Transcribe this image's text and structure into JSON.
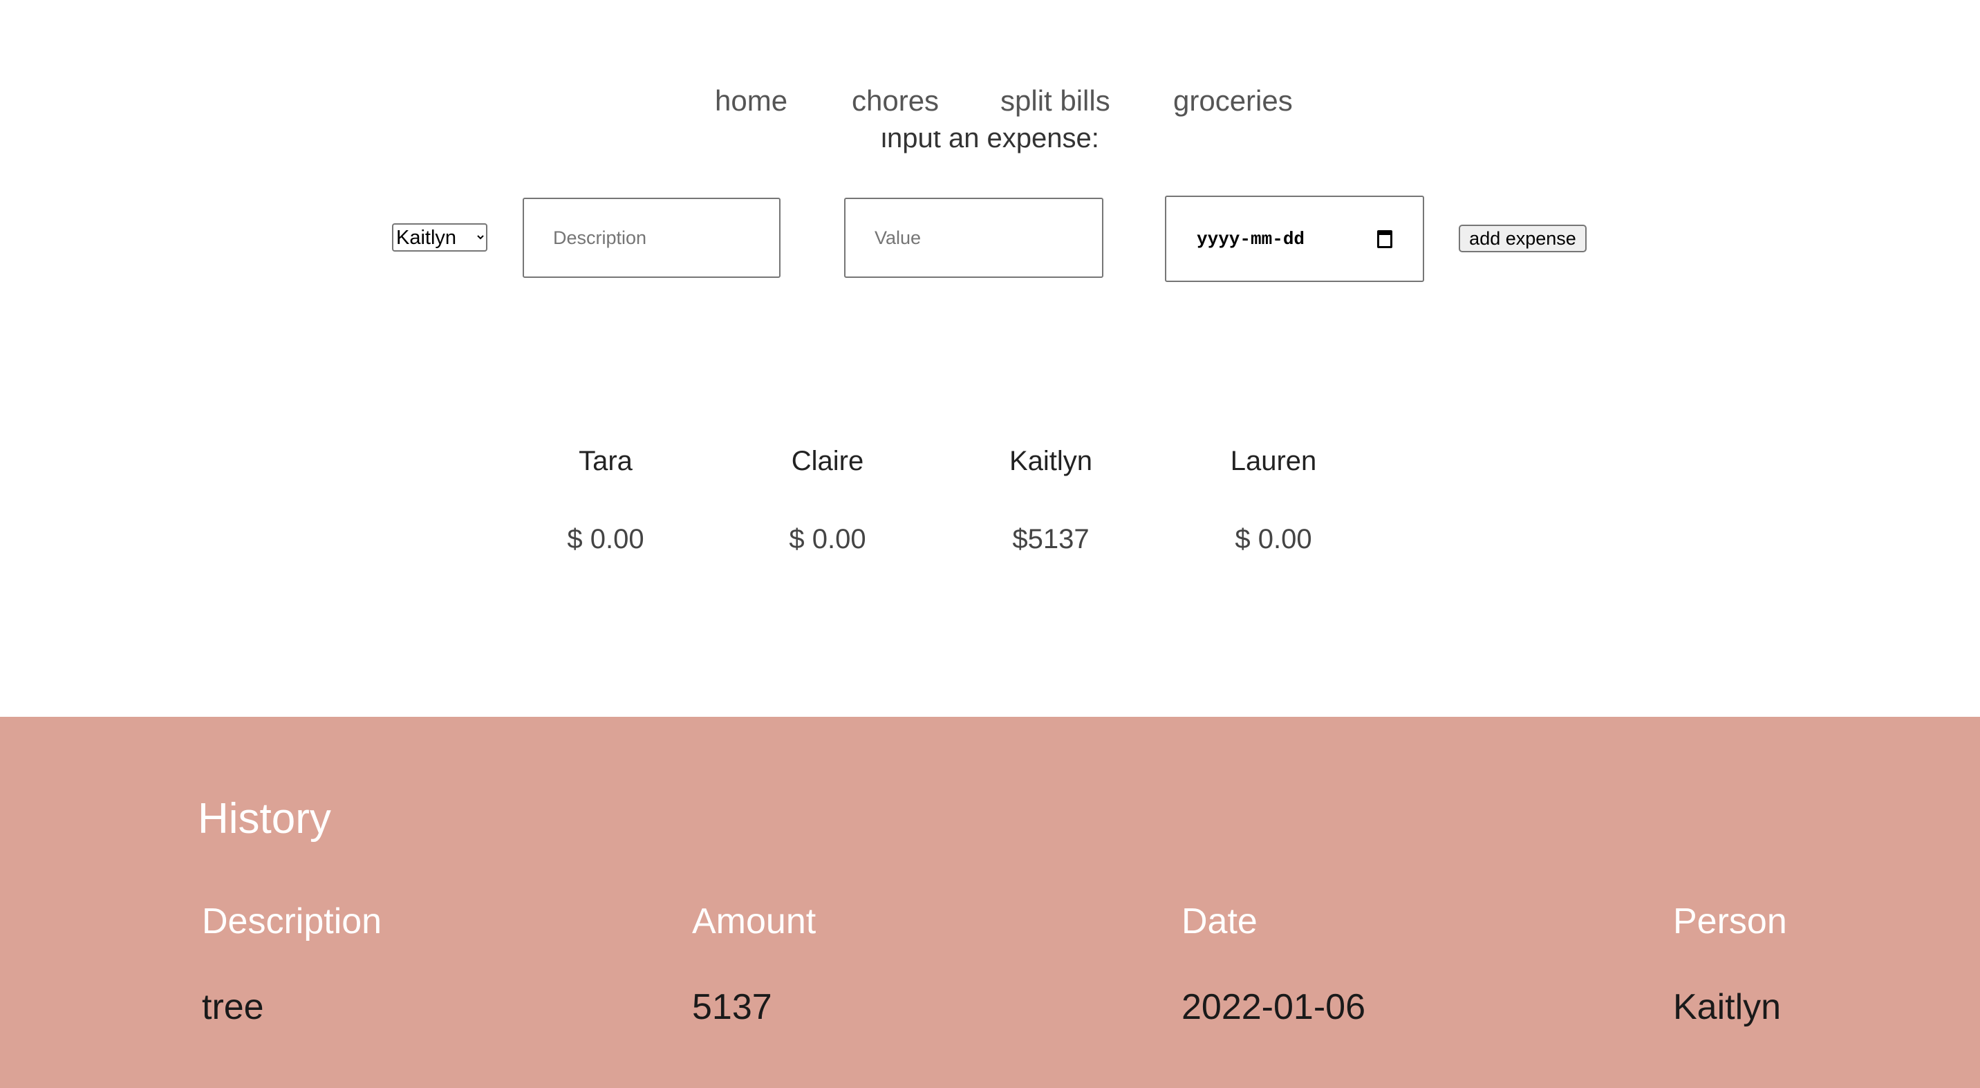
{
  "nav": {
    "items": [
      {
        "label": "home"
      },
      {
        "label": "chores"
      },
      {
        "label": "split bills"
      },
      {
        "label": "groceries"
      }
    ]
  },
  "form": {
    "prompt": "input an expense:",
    "person_select": {
      "value": "Kaitlyn",
      "options": [
        "Kaitlyn"
      ]
    },
    "description": {
      "placeholder": "Description",
      "value": ""
    },
    "value": {
      "placeholder": "Value",
      "value": ""
    },
    "date": {
      "placeholder": "yyyy-mm-dd",
      "icon": "calendar-icon"
    },
    "submit_label": "add expense"
  },
  "balances": [
    {
      "name": "Tara",
      "amount": "$ 0.00"
    },
    {
      "name": "Claire",
      "amount": "$ 0.00"
    },
    {
      "name": "Kaitlyn",
      "amount": "$5137"
    },
    {
      "name": "Lauren",
      "amount": "$ 0.00"
    }
  ],
  "history": {
    "title": "History",
    "background": "#dba396",
    "columns": [
      "Description",
      "Amount",
      "Date",
      "Person"
    ],
    "rows": [
      [
        "tree",
        "5137",
        "2022-01-06",
        "Kaitlyn"
      ]
    ]
  }
}
